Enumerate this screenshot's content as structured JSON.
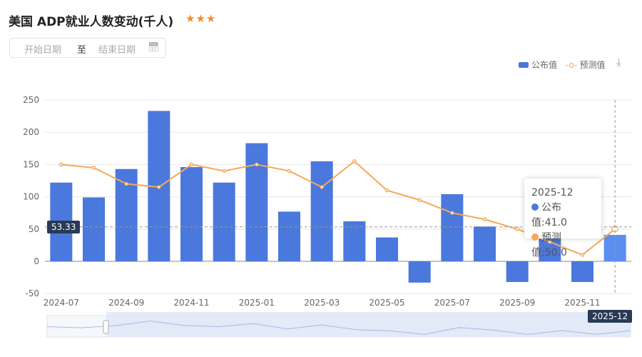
{
  "header": {
    "title": "美国 ADP就业人数变动(千人)",
    "stars": "★★★",
    "start_placeholder": "开始日期",
    "to": "至",
    "end_placeholder": "结束日期"
  },
  "legend": {
    "bar": "公布值",
    "line": "预测值"
  },
  "colors": {
    "bar": "#4a78dc",
    "line": "#f5a85a",
    "axis_pointer_label": "#2a3a55"
  },
  "tooltip": {
    "title": "2025-12",
    "bar": "公布值:41.0",
    "line": "预测值:50.0"
  },
  "axis_pointer": {
    "y": "53.33",
    "x": "2025-12"
  },
  "chart_data": {
    "type": "bar",
    "categories": [
      "2024-07",
      "2024-08",
      "2024-09",
      "2024-10",
      "2024-11",
      "2024-12",
      "2025-01",
      "2025-02",
      "2025-03",
      "2025-04",
      "2025-05",
      "2025-06",
      "2025-07",
      "2025-08",
      "2025-09",
      "2025-10",
      "2025-11",
      "2025-12"
    ],
    "x_tick_labels": [
      "2024-07",
      "2024-09",
      "2024-11",
      "2025-01",
      "2025-03",
      "2025-05",
      "2025-07",
      "2025-09",
      "2025-11",
      "2025-12"
    ],
    "series": [
      {
        "name": "公布值",
        "type": "bar",
        "values": [
          122,
          99,
          143,
          233,
          146,
          122,
          183,
          77,
          155,
          62,
          37,
          -33,
          104,
          54,
          -32,
          42,
          -32,
          41
        ]
      },
      {
        "name": "预测值",
        "type": "line",
        "values": [
          150,
          145,
          120,
          115,
          150,
          140,
          150,
          140,
          115,
          155,
          110,
          95,
          75,
          65,
          50,
          30,
          10,
          50
        ]
      }
    ],
    "ylim": [
      -50,
      250
    ],
    "y_ticks": [
      -50,
      0,
      50,
      100,
      150,
      200,
      250
    ],
    "grid": true,
    "legend_position": "top-right"
  }
}
